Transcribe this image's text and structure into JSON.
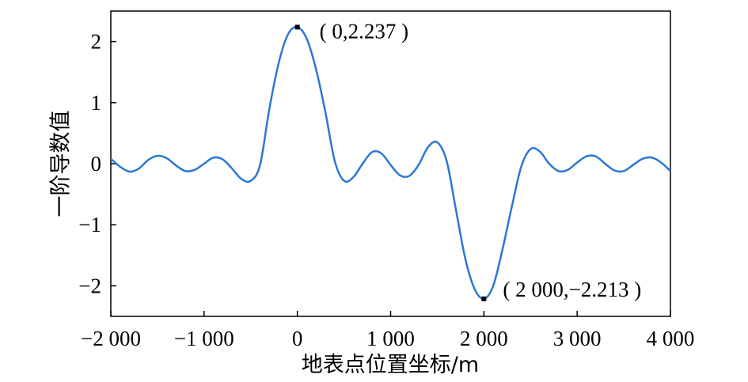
{
  "chart_data": {
    "type": "line",
    "xlabel": "地表点位置坐标/m",
    "ylabel": "一阶导数值",
    "x": [
      -2000,
      -1900,
      -1800,
      -1700,
      -1600,
      -1500,
      -1400,
      -1300,
      -1200,
      -1100,
      -1000,
      -900,
      -800,
      -700,
      -600,
      -500,
      -400,
      -300,
      -200,
      -100,
      0,
      100,
      200,
      300,
      400,
      500,
      600,
      700,
      800,
      900,
      1000,
      1100,
      1200,
      1300,
      1400,
      1500,
      1600,
      1700,
      1800,
      1900,
      2000,
      2100,
      2200,
      2300,
      2400,
      2500,
      2600,
      2700,
      2800,
      2900,
      3000,
      3100,
      3200,
      3300,
      3400,
      3500,
      3600,
      3700,
      3800,
      3900,
      4000
    ],
    "series": [
      {
        "color": "#2b78d4",
        "values": [
          0.08,
          -0.05,
          -0.13,
          -0.08,
          0.06,
          0.13,
          0.09,
          -0.03,
          -0.12,
          -0.1,
          0.0,
          0.1,
          0.07,
          -0.08,
          -0.25,
          -0.28,
          -0.02,
          0.9,
          1.65,
          2.12,
          2.237,
          2.05,
          1.55,
          0.85,
          0.05,
          -0.28,
          -0.22,
          0.0,
          0.19,
          0.17,
          -0.02,
          -0.19,
          -0.2,
          -0.02,
          0.27,
          0.35,
          0.05,
          -0.75,
          -1.55,
          -2.05,
          -2.213,
          -2.0,
          -1.4,
          -0.7,
          -0.05,
          0.24,
          0.2,
          0.0,
          -0.12,
          -0.1,
          0.02,
          0.12,
          0.12,
          0.0,
          -0.11,
          -0.12,
          -0.02,
          0.08,
          0.1,
          0.02,
          -0.12
        ]
      }
    ],
    "xlim": [
      -2000,
      4000
    ],
    "xticks": [
      {
        "value": -2000,
        "label": "−2 000"
      },
      {
        "value": -1000,
        "label": "−1 000"
      },
      0,
      {
        "value": 1000,
        "label": "1 000"
      },
      {
        "value": 2000,
        "label": "2 000"
      },
      {
        "value": 3000,
        "label": "3 000"
      },
      {
        "value": 4000,
        "label": "4 000"
      }
    ],
    "ylim": [
      -2.5,
      2.5
    ],
    "yticks": [
      {
        "value": -2,
        "label": "−2"
      },
      {
        "value": -1,
        "label": "−1"
      },
      0,
      1,
      2
    ],
    "annotations": [
      {
        "text": "( 0,2.237 )",
        "x": 0,
        "y": 2.237
      },
      {
        "text": "( 2 000,−2.213 )",
        "x": 2000,
        "y": -2.213
      }
    ]
  }
}
